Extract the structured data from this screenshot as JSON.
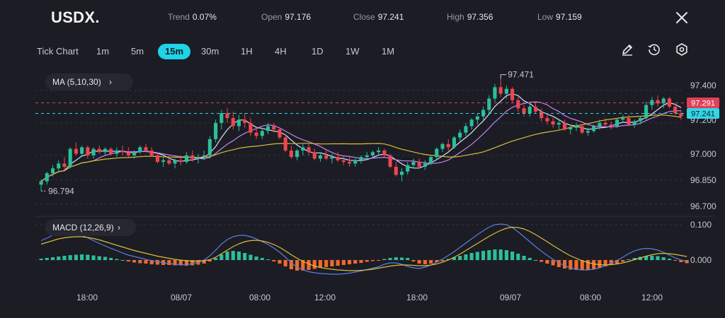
{
  "header": {
    "symbol": "USDX.",
    "trend_label": "Trend",
    "trend_value": "0.07%",
    "open_label": "Open",
    "open_value": "97.176",
    "close_label": "Close",
    "close_value": "97.241",
    "high_label": "High",
    "high_value": "97.356",
    "low_label": "Low",
    "low_value": "97.159"
  },
  "toolbar": {
    "chart_type": "Tick Chart",
    "timeframes": [
      "1m",
      "5m",
      "15m",
      "30m",
      "1H",
      "4H",
      "1D",
      "1W",
      "1M"
    ],
    "active_timeframe": "15m",
    "icons": [
      "pencil-icon",
      "history-icon",
      "settings-icon"
    ]
  },
  "indicators": {
    "ma_label": "MA (5,10,30)",
    "macd_label": "MACD (12,26,9)"
  },
  "colors": {
    "up": "#2bbf9a",
    "down": "#f0454f",
    "ma5": "#d6e3ff",
    "ma10": "#c086f0",
    "ma30": "#d9be3a",
    "dif": "#5a7fe0",
    "dea": "#d9be3a",
    "hist_up": "#2bbf9a",
    "hist_down": "#f26a2a",
    "bid_line": "#e0405a",
    "ask_line": "#33d6e6"
  },
  "chart_data": {
    "type": "candlestick",
    "price_axis": {
      "ticks": [
        "97.400",
        "97.200",
        "97.000",
        "96.850",
        "96.700"
      ],
      "ylim": [
        96.66,
        97.5
      ]
    },
    "macd_axis": {
      "ticks": [
        "0.100",
        "0.000"
      ]
    },
    "x_ticks": [
      "18:00",
      "08/07",
      "08:00",
      "12:00",
      "18:00",
      "09/07",
      "08:00",
      "12:00"
    ],
    "price_labels": {
      "red": "97.291",
      "cyan": "97.241"
    },
    "annotations": {
      "high": "97.471",
      "low": "96.794"
    },
    "candles": [
      [
        96.82,
        96.85,
        96.78,
        96.84
      ],
      [
        96.84,
        96.9,
        96.82,
        96.89
      ],
      [
        96.89,
        96.94,
        96.87,
        96.92
      ],
      [
        96.92,
        96.97,
        96.9,
        96.95
      ],
      [
        96.95,
        96.99,
        96.91,
        96.93
      ],
      [
        96.93,
        97.05,
        96.92,
        97.04
      ],
      [
        97.04,
        97.08,
        97.0,
        97.01
      ],
      [
        97.01,
        97.06,
        96.99,
        97.05
      ],
      [
        97.05,
        97.06,
        96.98,
        97.0
      ],
      [
        97.0,
        97.05,
        96.98,
        97.04
      ],
      [
        97.04,
        97.06,
        97.01,
        97.02
      ],
      [
        97.02,
        97.05,
        97.0,
        97.04
      ],
      [
        97.04,
        97.05,
        97.0,
        97.01
      ],
      [
        97.01,
        97.05,
        96.99,
        97.03
      ],
      [
        97.03,
        97.06,
        97.0,
        97.02
      ],
      [
        97.02,
        97.05,
        96.99,
        97.0
      ],
      [
        97.0,
        97.03,
        96.98,
        97.02
      ],
      [
        97.02,
        97.06,
        97.01,
        97.05
      ],
      [
        97.05,
        97.07,
        97.02,
        97.03
      ],
      [
        97.03,
        97.05,
        96.99,
        97.0
      ],
      [
        97.0,
        97.02,
        96.95,
        96.96
      ],
      [
        96.96,
        96.99,
        96.93,
        96.97
      ],
      [
        96.97,
        97.0,
        96.94,
        96.95
      ],
      [
        96.95,
        96.98,
        96.92,
        96.97
      ],
      [
        96.97,
        97.0,
        96.94,
        96.96
      ],
      [
        96.96,
        97.02,
        96.95,
        97.0
      ],
      [
        97.0,
        97.03,
        96.96,
        96.98
      ],
      [
        96.98,
        97.01,
        96.95,
        96.99
      ],
      [
        96.99,
        97.03,
        96.97,
        97.0
      ],
      [
        97.0,
        97.12,
        96.98,
        97.1
      ],
      [
        97.1,
        97.22,
        97.08,
        97.2
      ],
      [
        97.2,
        97.28,
        97.16,
        97.26
      ],
      [
        97.26,
        97.29,
        97.2,
        97.23
      ],
      [
        97.23,
        97.27,
        97.16,
        97.18
      ],
      [
        97.18,
        97.25,
        97.15,
        97.22
      ],
      [
        97.22,
        97.26,
        97.17,
        97.2
      ],
      [
        97.2,
        97.23,
        97.12,
        97.14
      ],
      [
        97.14,
        97.18,
        97.1,
        97.12
      ],
      [
        97.12,
        97.17,
        97.1,
        97.15
      ],
      [
        97.15,
        97.2,
        97.13,
        97.18
      ],
      [
        97.18,
        97.2,
        97.14,
        97.16
      ],
      [
        97.16,
        97.17,
        97.1,
        97.11
      ],
      [
        97.11,
        97.13,
        97.02,
        97.03
      ],
      [
        97.03,
        97.06,
        96.98,
        96.99
      ],
      [
        96.99,
        97.04,
        96.97,
        97.03
      ],
      [
        97.03,
        97.07,
        97.0,
        97.05
      ],
      [
        97.05,
        97.07,
        97.0,
        97.02
      ],
      [
        97.02,
        97.04,
        96.97,
        96.98
      ],
      [
        96.98,
        97.02,
        96.96,
        97.0
      ],
      [
        97.0,
        97.03,
        96.97,
        96.98
      ],
      [
        96.98,
        97.01,
        96.95,
        96.99
      ],
      [
        96.99,
        97.02,
        96.96,
        96.97
      ],
      [
        96.97,
        97.0,
        96.94,
        96.96
      ],
      [
        96.96,
        96.99,
        96.93,
        96.95
      ],
      [
        96.95,
        96.98,
        96.93,
        96.97
      ],
      [
        96.97,
        97.0,
        96.95,
        96.99
      ],
      [
        96.99,
        97.02,
        96.97,
        97.0
      ],
      [
        97.0,
        97.03,
        96.98,
        97.02
      ],
      [
        97.02,
        97.05,
        97.0,
        97.03
      ],
      [
        97.03,
        97.04,
        96.99,
        97.0
      ],
      [
        97.0,
        97.01,
        96.92,
        96.93
      ],
      [
        96.93,
        96.96,
        96.87,
        96.88
      ],
      [
        96.88,
        96.92,
        96.84,
        96.9
      ],
      [
        96.9,
        96.96,
        96.88,
        96.94
      ],
      [
        96.94,
        96.98,
        96.92,
        96.96
      ],
      [
        96.96,
        96.98,
        96.92,
        96.93
      ],
      [
        96.93,
        96.97,
        96.91,
        96.95
      ],
      [
        96.95,
        97.0,
        96.94,
        96.99
      ],
      [
        96.99,
        97.05,
        96.98,
        97.04
      ],
      [
        97.04,
        97.08,
        97.02,
        97.07
      ],
      [
        97.07,
        97.1,
        97.03,
        97.05
      ],
      [
        97.05,
        97.12,
        97.04,
        97.11
      ],
      [
        97.11,
        97.16,
        97.09,
        97.14
      ],
      [
        97.14,
        97.2,
        97.12,
        97.18
      ],
      [
        97.18,
        97.23,
        97.16,
        97.22
      ],
      [
        97.22,
        97.26,
        97.19,
        97.24
      ],
      [
        97.24,
        97.3,
        97.22,
        97.28
      ],
      [
        97.28,
        97.37,
        97.26,
        97.35
      ],
      [
        97.35,
        97.44,
        97.33,
        97.42
      ],
      [
        97.42,
        97.471,
        97.36,
        97.38
      ],
      [
        97.38,
        97.43,
        97.35,
        97.41
      ],
      [
        97.41,
        97.42,
        97.32,
        97.34
      ],
      [
        97.34,
        97.36,
        97.27,
        97.29
      ],
      [
        97.29,
        97.31,
        97.24,
        97.26
      ],
      [
        97.26,
        97.32,
        97.24,
        97.3
      ],
      [
        97.3,
        97.33,
        97.26,
        97.27
      ],
      [
        97.27,
        97.29,
        97.21,
        97.23
      ],
      [
        97.23,
        97.26,
        97.19,
        97.21
      ],
      [
        97.21,
        97.23,
        97.17,
        97.19
      ],
      [
        97.19,
        97.22,
        97.16,
        97.2
      ],
      [
        97.2,
        97.22,
        97.15,
        97.16
      ],
      [
        97.16,
        97.19,
        97.13,
        97.17
      ],
      [
        97.17,
        97.2,
        97.15,
        97.18
      ],
      [
        97.18,
        97.19,
        97.13,
        97.14
      ],
      [
        97.14,
        97.17,
        97.12,
        97.15
      ],
      [
        97.15,
        97.19,
        97.14,
        97.18
      ],
      [
        97.18,
        97.22,
        97.16,
        97.2
      ],
      [
        97.2,
        97.23,
        97.17,
        97.19
      ],
      [
        97.19,
        97.21,
        97.16,
        97.18
      ],
      [
        97.18,
        97.23,
        97.17,
        97.22
      ],
      [
        97.22,
        97.25,
        97.2,
        97.23
      ],
      [
        97.23,
        97.25,
        97.18,
        97.19
      ],
      [
        97.19,
        97.22,
        97.17,
        97.21
      ],
      [
        97.21,
        97.24,
        97.19,
        97.23
      ],
      [
        97.23,
        97.33,
        97.22,
        97.31
      ],
      [
        97.31,
        97.36,
        97.28,
        97.34
      ],
      [
        97.34,
        97.37,
        97.3,
        97.32
      ],
      [
        97.32,
        97.36,
        97.29,
        97.35
      ],
      [
        97.35,
        97.36,
        97.29,
        97.3
      ],
      [
        97.3,
        97.32,
        97.25,
        97.26
      ],
      [
        97.26,
        97.28,
        97.22,
        97.24
      ]
    ],
    "macd_hist": [
      0.004,
      0.006,
      0.008,
      0.01,
      0.012,
      0.014,
      0.015,
      0.016,
      0.015,
      0.013,
      0.011,
      0.009,
      0.006,
      0.003,
      0.0,
      -0.004,
      -0.007,
      -0.009,
      -0.01,
      -0.012,
      -0.013,
      -0.014,
      -0.014,
      -0.015,
      -0.015,
      -0.016,
      -0.015,
      -0.013,
      -0.01,
      -0.004,
      0.006,
      0.016,
      0.024,
      0.026,
      0.024,
      0.02,
      0.015,
      0.01,
      0.006,
      0.002,
      -0.004,
      -0.01,
      -0.018,
      -0.026,
      -0.03,
      -0.03,
      -0.028,
      -0.025,
      -0.022,
      -0.02,
      -0.018,
      -0.016,
      -0.014,
      -0.012,
      -0.01,
      -0.008,
      -0.005,
      -0.003,
      -0.001,
      0.003,
      0.006,
      0.008,
      0.007,
      0.006,
      -0.004,
      -0.01,
      -0.012,
      -0.01,
      -0.006,
      -0.003,
      0.003,
      0.008,
      0.012,
      0.016,
      0.02,
      0.023,
      0.026,
      0.028,
      0.03,
      0.03,
      0.028,
      0.024,
      0.018,
      0.012,
      0.006,
      0.0,
      -0.005,
      -0.01,
      -0.015,
      -0.02,
      -0.024,
      -0.027,
      -0.028,
      -0.028,
      -0.027,
      -0.025,
      -0.022,
      -0.018,
      -0.014,
      -0.01,
      -0.005,
      0.002,
      0.006,
      0.009,
      0.011,
      0.012,
      0.011,
      0.008,
      0.004,
      -0.002,
      -0.006,
      -0.009
    ],
    "macd_line": [
      0.055,
      0.062,
      0.07,
      0.075,
      0.078,
      0.078,
      0.075,
      0.07,
      0.063,
      0.055,
      0.047,
      0.04,
      0.033,
      0.027,
      0.02,
      0.014,
      0.01,
      0.006,
      0.002,
      -0.002,
      -0.005,
      -0.008,
      -0.01,
      -0.012,
      -0.013,
      -0.013,
      -0.01,
      -0.006,
      0.0,
      0.012,
      0.028,
      0.045,
      0.058,
      0.066,
      0.07,
      0.07,
      0.066,
      0.06,
      0.052,
      0.044,
      0.034,
      0.022,
      0.008,
      -0.008,
      -0.02,
      -0.028,
      -0.033,
      -0.036,
      -0.038,
      -0.039,
      -0.04,
      -0.04,
      -0.039,
      -0.037,
      -0.034,
      -0.031,
      -0.027,
      -0.023,
      -0.019,
      -0.012,
      -0.008,
      -0.008,
      -0.012,
      -0.018,
      -0.022,
      -0.024,
      -0.02,
      -0.014,
      -0.006,
      0.003,
      0.013,
      0.024,
      0.036,
      0.048,
      0.06,
      0.072,
      0.083,
      0.093,
      0.1,
      0.102,
      0.1,
      0.092,
      0.08,
      0.066,
      0.052,
      0.038,
      0.025,
      0.013,
      0.002,
      -0.008,
      -0.016,
      -0.022,
      -0.026,
      -0.028,
      -0.028,
      -0.026,
      -0.022,
      -0.016,
      -0.009,
      -0.001,
      0.008,
      0.018,
      0.026,
      0.031,
      0.033,
      0.032,
      0.028,
      0.022,
      0.014,
      0.006,
      0.0,
      -0.004
    ],
    "signal_line": [
      0.045,
      0.05,
      0.055,
      0.06,
      0.063,
      0.065,
      0.066,
      0.066,
      0.064,
      0.061,
      0.057,
      0.052,
      0.047,
      0.042,
      0.037,
      0.032,
      0.027,
      0.023,
      0.019,
      0.015,
      0.011,
      0.008,
      0.005,
      0.002,
      0.0,
      -0.002,
      -0.003,
      -0.003,
      -0.002,
      0.001,
      0.008,
      0.018,
      0.028,
      0.038,
      0.046,
      0.052,
      0.055,
      0.056,
      0.054,
      0.05,
      0.044,
      0.036,
      0.026,
      0.015,
      0.005,
      -0.004,
      -0.011,
      -0.017,
      -0.021,
      -0.024,
      -0.026,
      -0.028,
      -0.029,
      -0.03,
      -0.03,
      -0.029,
      -0.028,
      -0.026,
      -0.023,
      -0.02,
      -0.017,
      -0.015,
      -0.014,
      -0.014,
      -0.015,
      -0.016,
      -0.016,
      -0.014,
      -0.011,
      -0.006,
      0.0,
      0.008,
      0.017,
      0.027,
      0.037,
      0.047,
      0.057,
      0.067,
      0.076,
      0.084,
      0.09,
      0.093,
      0.092,
      0.088,
      0.081,
      0.072,
      0.062,
      0.052,
      0.041,
      0.031,
      0.021,
      0.012,
      0.005,
      -0.002,
      -0.007,
      -0.011,
      -0.013,
      -0.014,
      -0.013,
      -0.011,
      -0.008,
      -0.004,
      0.001,
      0.006,
      0.011,
      0.015,
      0.018,
      0.019,
      0.018,
      0.016,
      0.013,
      0.01
    ]
  }
}
